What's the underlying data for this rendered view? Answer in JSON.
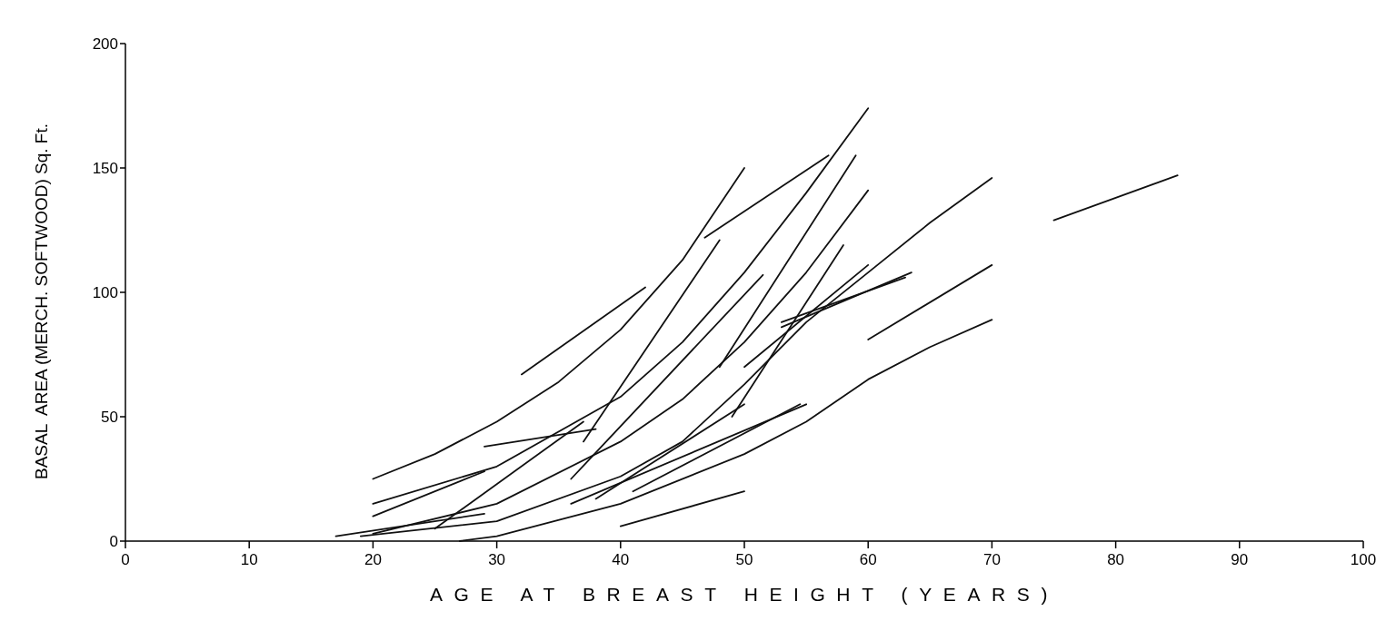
{
  "chart_data": {
    "type": "line",
    "xlabel": "AGE AT BREAST HEIGHT (YEARS)",
    "ylabel": "BASAL  AREA (MERCH. SOFTWOOD) Sq. Ft.",
    "xlim": [
      0,
      100
    ],
    "ylim": [
      0,
      200
    ],
    "xticks": [
      0,
      10,
      20,
      30,
      40,
      50,
      60,
      70,
      80,
      90,
      100
    ],
    "yticks": [
      0,
      50,
      100,
      150,
      200
    ],
    "grid": false,
    "marker": "none",
    "line_style": "solid",
    "series": [
      {
        "color": "#111111",
        "x": [
          20,
          25,
          30,
          35,
          40,
          45,
          50
        ],
        "values": [
          25,
          35,
          48,
          64,
          85,
          113,
          150
        ]
      },
      {
        "color": "#111111",
        "x": [
          20,
          30,
          40,
          45,
          50,
          55,
          60
        ],
        "values": [
          15,
          30,
          58,
          80,
          108,
          140,
          174
        ]
      },
      {
        "color": "#111111",
        "x": [
          20,
          30,
          40,
          45,
          50,
          55,
          60
        ],
        "values": [
          3,
          15,
          40,
          57,
          80,
          108,
          141
        ]
      },
      {
        "color": "#111111",
        "x": [
          19,
          30,
          40,
          45,
          50,
          55,
          60,
          65,
          70
        ],
        "values": [
          2,
          8,
          26,
          40,
          63,
          88,
          108,
          128,
          146
        ]
      },
      {
        "color": "#111111",
        "x": [
          27,
          30,
          40,
          50,
          55,
          60,
          65,
          70
        ],
        "values": [
          0,
          2,
          15,
          35,
          48,
          65,
          78,
          89
        ]
      },
      {
        "color": "#111111",
        "x": [
          75,
          85
        ],
        "values": [
          129,
          147
        ]
      },
      {
        "color": "#111111",
        "x": [
          32,
          42
        ],
        "values": [
          67,
          102
        ]
      },
      {
        "color": "#111111",
        "x": [
          20,
          29
        ],
        "values": [
          10,
          28
        ]
      },
      {
        "color": "#111111",
        "x": [
          29,
          38
        ],
        "values": [
          38,
          45
        ]
      },
      {
        "color": "#111111",
        "x": [
          25,
          37
        ],
        "values": [
          5,
          48
        ]
      },
      {
        "color": "#111111",
        "x": [
          17,
          29
        ],
        "values": [
          2,
          11
        ]
      },
      {
        "color": "#111111",
        "x": [
          40,
          50
        ],
        "values": [
          6,
          20
        ]
      },
      {
        "color": "#111111",
        "x": [
          36,
          55
        ],
        "values": [
          15,
          55
        ]
      },
      {
        "color": "#111111",
        "x": [
          46.8,
          56.8
        ],
        "values": [
          122,
          155
        ]
      },
      {
        "color": "#111111",
        "x": [
          37,
          48
        ],
        "values": [
          40,
          121
        ]
      },
      {
        "color": "#111111",
        "x": [
          48,
          59
        ],
        "values": [
          70,
          155
        ]
      },
      {
        "color": "#111111",
        "x": [
          36,
          51.5
        ],
        "values": [
          25,
          107
        ]
      },
      {
        "color": "#111111",
        "x": [
          50,
          60
        ],
        "values": [
          70,
          111
        ]
      },
      {
        "color": "#111111",
        "x": [
          53,
          63.5
        ],
        "values": [
          86,
          108
        ]
      },
      {
        "color": "#111111",
        "x": [
          53,
          63
        ],
        "values": [
          88,
          106
        ]
      },
      {
        "color": "#111111",
        "x": [
          60,
          70
        ],
        "values": [
          81,
          111
        ]
      },
      {
        "color": "#111111",
        "x": [
          49,
          58
        ],
        "values": [
          50,
          119
        ]
      },
      {
        "color": "#111111",
        "x": [
          38,
          50
        ],
        "values": [
          17,
          55
        ]
      },
      {
        "color": "#111111",
        "x": [
          41,
          54.5
        ],
        "values": [
          20,
          55
        ]
      }
    ]
  }
}
